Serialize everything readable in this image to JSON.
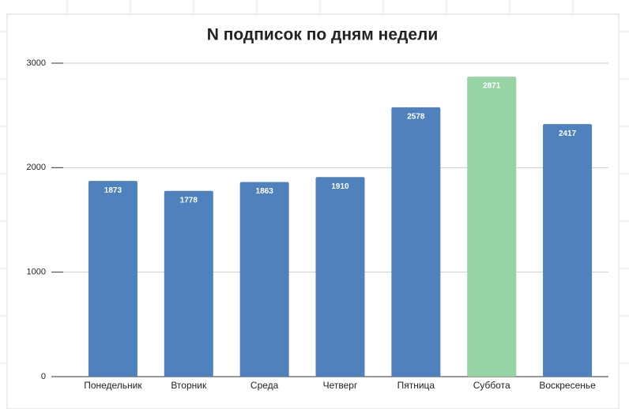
{
  "chart_data": {
    "type": "bar",
    "title": "N подписок по дням недели",
    "categories": [
      "Понедельник",
      "Вторник",
      "Среда",
      "Четверг",
      "Пятница",
      "Суббота",
      "Воскресенье"
    ],
    "values": [
      1873,
      1778,
      1863,
      1910,
      2578,
      2871,
      2417
    ],
    "colors": [
      "#4f81bd",
      "#4f81bd",
      "#4f81bd",
      "#4f81bd",
      "#4f81bd",
      "#98d3a3",
      "#4f81bd"
    ],
    "ylim": [
      0,
      3000
    ],
    "yticks": [
      0,
      1000,
      2000,
      3000
    ],
    "grid": true
  }
}
